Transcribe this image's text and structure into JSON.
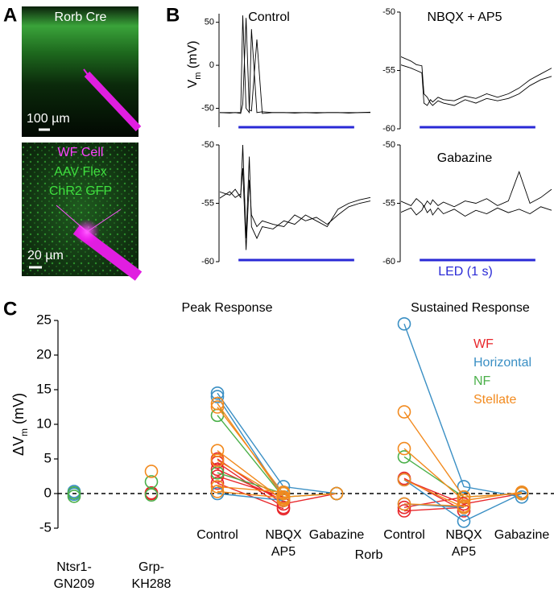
{
  "panel_labels": [
    "A",
    "B",
    "C"
  ],
  "panel_a": {
    "top_title": "Rorb Cre",
    "top_scale": "100 µm",
    "bottom_labels": [
      "WF Cell",
      "AAV Flex",
      "ChR2 GFP"
    ],
    "bottom_scale": "20 µm"
  },
  "panel_b": {
    "ylabel": {
      "main": "V",
      "sub": "m",
      "unit": " (mV)"
    },
    "led_label": "LED (1 s)"
  },
  "chart_data": [
    {
      "type": "line",
      "title": "Control",
      "led": [
        0.18,
        1.25
      ],
      "led_color": "#2a2ad6",
      "ylim": [
        -72,
        60
      ],
      "yticks": [
        50,
        0,
        -50
      ],
      "x": [
        0,
        0.1,
        0.15,
        0.2,
        0.22,
        0.25,
        0.28,
        0.3,
        0.35,
        0.4,
        0.5,
        0.6,
        0.7,
        0.8,
        0.9,
        1.0,
        1.1,
        1.2,
        1.3,
        1.4
      ],
      "series": [
        {
          "color": "#000000",
          "values": [
            -55,
            -55,
            -55,
            -55,
            58,
            -50,
            -55,
            42,
            -55,
            -54,
            -55,
            -55,
            -55.5,
            -55,
            -55,
            -55,
            -55,
            -55.5,
            -55,
            -55
          ]
        },
        {
          "color": "#000000",
          "values": [
            -55,
            -55.5,
            -55,
            -56,
            -45,
            55,
            -52,
            -53,
            30,
            -56,
            -55,
            -55,
            -55,
            -55,
            -55.5,
            -55,
            -55,
            -55,
            -55,
            -54.5
          ]
        }
      ]
    },
    {
      "type": "line",
      "title": "NBQX + AP5",
      "led": [
        0.18,
        1.25
      ],
      "led_color": "#2a2ad6",
      "ylim": [
        -60,
        -50
      ],
      "yticks": [
        -50,
        -55,
        -60
      ],
      "x": [
        0,
        0.1,
        0.15,
        0.2,
        0.22,
        0.25,
        0.28,
        0.3,
        0.35,
        0.4,
        0.5,
        0.6,
        0.7,
        0.8,
        0.9,
        1.0,
        1.1,
        1.2,
        1.3,
        1.4
      ],
      "series": [
        {
          "color": "#000000",
          "values": [
            -54.5,
            -54.8,
            -55,
            -55.2,
            -57.8,
            -58,
            -57.5,
            -57.7,
            -57.3,
            -57.5,
            -57.6,
            -57.2,
            -57.4,
            -57,
            -57.3,
            -57,
            -56.5,
            -55.8,
            -55.3,
            -54.8
          ]
        },
        {
          "color": "#000000",
          "values": [
            -53.8,
            -54.2,
            -54.5,
            -54.6,
            -57,
            -57.3,
            -57.8,
            -58,
            -57.6,
            -57.8,
            -58,
            -57.5,
            -57.8,
            -57.4,
            -57.6,
            -57.4,
            -57,
            -56.3,
            -55.8,
            -55.5
          ]
        }
      ]
    },
    {
      "type": "line",
      "led": [
        0.18,
        1.25
      ],
      "led_color": "#2a2ad6",
      "ylim": [
        -60,
        -50
      ],
      "yticks": [
        -50,
        -55,
        -60
      ],
      "x": [
        0,
        0.1,
        0.15,
        0.2,
        0.22,
        0.25,
        0.28,
        0.3,
        0.35,
        0.4,
        0.5,
        0.6,
        0.7,
        0.8,
        0.9,
        1.0,
        1.1,
        1.2,
        1.3,
        1.4
      ],
      "series": [
        {
          "color": "#000000",
          "values": [
            -54,
            -54.3,
            -53.8,
            -54.5,
            -50,
            -58,
            -51,
            -57,
            -58,
            -57,
            -57.2,
            -56.5,
            -56.8,
            -56,
            -56.5,
            -57,
            -55.5,
            -55,
            -54.7,
            -54.5
          ]
        },
        {
          "color": "#000000",
          "values": [
            -54.6,
            -54,
            -54.5,
            -54.2,
            -52,
            -59,
            -53,
            -56,
            -57,
            -56.5,
            -56.8,
            -57,
            -56,
            -56.5,
            -56.2,
            -56.8,
            -56,
            -55.3,
            -55,
            -54.8
          ]
        }
      ]
    },
    {
      "type": "line",
      "title": "Gabazine",
      "led": [
        0.18,
        1.25
      ],
      "led_color": "#2a2ad6",
      "ylim": [
        -60,
        -50
      ],
      "yticks": [
        -50,
        -55,
        -60
      ],
      "x": [
        0,
        0.1,
        0.15,
        0.2,
        0.22,
        0.25,
        0.28,
        0.3,
        0.35,
        0.4,
        0.5,
        0.6,
        0.7,
        0.8,
        0.9,
        1.0,
        1.1,
        1.2,
        1.3,
        1.4
      ],
      "series": [
        {
          "color": "#000000",
          "values": [
            -54.8,
            -55.2,
            -54.6,
            -55,
            -55.3,
            -54.8,
            -55.1,
            -54.7,
            -55.2,
            -54.9,
            -55.3,
            -54.8,
            -55,
            -54.6,
            -55.2,
            -54.8,
            -52.3,
            -55,
            -54.5,
            -53.8
          ]
        },
        {
          "color": "#000000",
          "values": [
            -55.8,
            -55.4,
            -56,
            -55.6,
            -55.2,
            -55.8,
            -55.5,
            -56,
            -55.4,
            -55.9,
            -55.5,
            -56.1,
            -55.6,
            -55.9,
            -55.4,
            -55.8,
            -55.5,
            -55.9,
            -55.3,
            -55.6
          ]
        }
      ]
    },
    {
      "type": "scatter",
      "titles": [
        "Peak Response",
        "Sustained Response"
      ],
      "ylabel": {
        "main": "ΔV",
        "sub": "m",
        "unit": " (mV)"
      },
      "ylim": [
        -5,
        25
      ],
      "yticks": [
        -5,
        0,
        5,
        10,
        15,
        20,
        25
      ],
      "reference_line": 0,
      "categories": [
        [
          "Ntsr1-",
          "GN209"
        ],
        [
          "Grp-",
          "KH288"
        ],
        [
          "Control"
        ],
        [
          "NBQX",
          "AP5"
        ],
        [
          "Gabazine"
        ],
        [
          "Control"
        ],
        [
          "NBQX",
          "AP5"
        ],
        [
          "Gabazine"
        ]
      ],
      "group_label": "Rorb",
      "series": [
        {
          "name": "WF",
          "color": "#e8262a",
          "ntsr1": [],
          "grp": [
            0,
            0.1
          ],
          "cells": [
            [
              5,
              -1.5,
              0,
              2,
              -1.5,
              0
            ],
            [
              4.5,
              -2,
              null,
              2.2,
              -2.5,
              null
            ],
            [
              3.5,
              -1,
              null,
              -2,
              -0.5,
              null
            ],
            [
              2.5,
              -0.5,
              null,
              -2.5,
              -2,
              null
            ],
            [
              1.5,
              -2.2,
              null,
              null,
              null,
              null
            ]
          ]
        },
        {
          "name": "Horizontal",
          "color": "#3a8fc4",
          "ntsr1": [
            0.3,
            -0.1
          ],
          "grp": [],
          "cells": [
            [
              14.5,
              1,
              0,
              24.5,
              1,
              -0.5
            ],
            [
              14,
              -0.5,
              null,
              2,
              -4,
              0
            ],
            [
              0,
              -1,
              null,
              -1.5,
              -2,
              null
            ]
          ]
        },
        {
          "name": "NF",
          "color": "#4bb04a",
          "ntsr1": [
            -0.4,
            0.1
          ],
          "grp": [
            1.7,
            -0.2
          ],
          "cells": [
            [
              11.3,
              -0.5,
              0,
              5.3,
              -0.5,
              0
            ],
            [
              3,
              0,
              null,
              null,
              null,
              null
            ]
          ]
        },
        {
          "name": "Stellate",
          "color": "#f28a1e",
          "ntsr1": [],
          "grp": [
            3.2
          ],
          "cells": [
            [
              13,
              -0.5,
              0,
              11.8,
              -0.5,
              0
            ],
            [
              12.5,
              0,
              null,
              6.5,
              -1,
              0.2
            ],
            [
              6.2,
              -1,
              null,
              2,
              -2,
              null
            ],
            [
              4.8,
              -0.8,
              null,
              -1.5,
              -1.8,
              null
            ],
            [
              1,
              0.2,
              null,
              null,
              null,
              null
            ],
            [
              0.3,
              -0.6,
              null,
              null,
              null,
              null
            ]
          ]
        }
      ]
    }
  ]
}
